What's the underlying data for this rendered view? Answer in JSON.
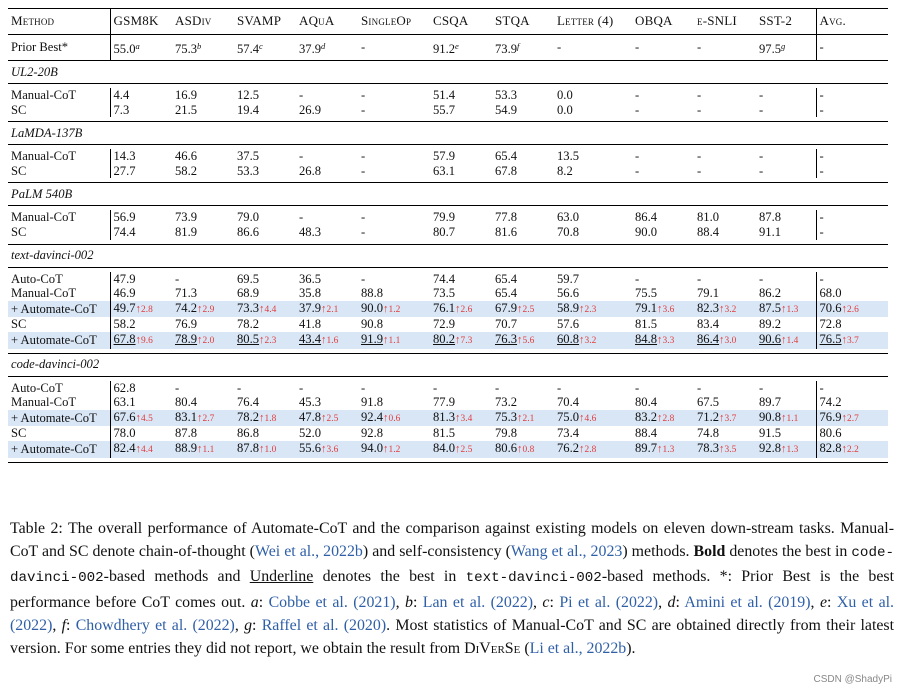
{
  "table": {
    "columns": [
      "Method",
      "GSM8K",
      "ASDiv",
      "SVAMP",
      "AQuA",
      "SingleOp",
      "CSQA",
      "STQA",
      "Letter (4)",
      "OBQA",
      "e-SNLI",
      "SST-2",
      "Avg."
    ],
    "prior_best": {
      "label": "Prior Best*",
      "cells": [
        {
          "v": "55.0",
          "sup": "a"
        },
        {
          "v": "75.3",
          "sup": "b"
        },
        {
          "v": "57.4",
          "sup": "c"
        },
        {
          "v": "37.9",
          "sup": "d"
        },
        {
          "v": "-"
        },
        {
          "v": "91.2",
          "sup": "e"
        },
        {
          "v": "73.9",
          "sup": "f"
        },
        {
          "v": "-"
        },
        {
          "v": "-"
        },
        {
          "v": "-"
        },
        {
          "v": "97.5",
          "sup": "g"
        },
        {
          "v": "-"
        }
      ]
    },
    "sections": [
      {
        "title": "UL2-20B",
        "rows": [
          {
            "label": "Manual-CoT",
            "cells": [
              {
                "v": "4.4"
              },
              {
                "v": "16.9"
              },
              {
                "v": "12.5"
              },
              {
                "v": "-"
              },
              {
                "v": "-"
              },
              {
                "v": "51.4"
              },
              {
                "v": "53.3"
              },
              {
                "v": "0.0"
              },
              {
                "v": "-"
              },
              {
                "v": "-"
              },
              {
                "v": "-"
              },
              {
                "v": "-"
              }
            ]
          },
          {
            "label": "SC",
            "cells": [
              {
                "v": "7.3"
              },
              {
                "v": "21.5"
              },
              {
                "v": "19.4"
              },
              {
                "v": "26.9"
              },
              {
                "v": "-"
              },
              {
                "v": "55.7"
              },
              {
                "v": "54.9"
              },
              {
                "v": "0.0"
              },
              {
                "v": "-"
              },
              {
                "v": "-"
              },
              {
                "v": "-"
              },
              {
                "v": "-"
              }
            ]
          }
        ]
      },
      {
        "title": "LaMDA-137B",
        "rows": [
          {
            "label": "Manual-CoT",
            "cells": [
              {
                "v": "14.3"
              },
              {
                "v": "46.6"
              },
              {
                "v": "37.5"
              },
              {
                "v": "-"
              },
              {
                "v": "-"
              },
              {
                "v": "57.9"
              },
              {
                "v": "65.4"
              },
              {
                "v": "13.5"
              },
              {
                "v": "-"
              },
              {
                "v": "-"
              },
              {
                "v": "-"
              },
              {
                "v": "-"
              }
            ]
          },
          {
            "label": "SC",
            "cells": [
              {
                "v": "27.7"
              },
              {
                "v": "58.2"
              },
              {
                "v": "53.3"
              },
              {
                "v": "26.8"
              },
              {
                "v": "-"
              },
              {
                "v": "63.1"
              },
              {
                "v": "67.8"
              },
              {
                "v": "8.2"
              },
              {
                "v": "-"
              },
              {
                "v": "-"
              },
              {
                "v": "-"
              },
              {
                "v": "-"
              }
            ]
          }
        ]
      },
      {
        "title": "PaLM 540B",
        "rows": [
          {
            "label": "Manual-CoT",
            "cells": [
              {
                "v": "56.9"
              },
              {
                "v": "73.9"
              },
              {
                "v": "79.0"
              },
              {
                "v": "-"
              },
              {
                "v": "-"
              },
              {
                "v": "79.9"
              },
              {
                "v": "77.8"
              },
              {
                "v": "63.0"
              },
              {
                "v": "86.4"
              },
              {
                "v": "81.0"
              },
              {
                "v": "87.8"
              },
              {
                "v": "-"
              }
            ]
          },
          {
            "label": "SC",
            "cells": [
              {
                "v": "74.4"
              },
              {
                "v": "81.9"
              },
              {
                "v": "86.6"
              },
              {
                "v": "48.3"
              },
              {
                "v": "-"
              },
              {
                "v": "80.7"
              },
              {
                "v": "81.6"
              },
              {
                "v": "70.8"
              },
              {
                "v": "90.0"
              },
              {
                "v": "88.4"
              },
              {
                "v": "91.1"
              },
              {
                "v": "-"
              }
            ]
          }
        ]
      },
      {
        "title": "text-davinci-002",
        "rows": [
          {
            "label": "Auto-CoT",
            "cells": [
              {
                "v": "47.9"
              },
              {
                "v": "-"
              },
              {
                "v": "69.5"
              },
              {
                "v": "36.5"
              },
              {
                "v": "-"
              },
              {
                "v": "74.4"
              },
              {
                "v": "65.4"
              },
              {
                "v": "59.7"
              },
              {
                "v": "-"
              },
              {
                "v": "-"
              },
              {
                "v": "-"
              },
              {
                "v": "-"
              }
            ]
          },
          {
            "label": "Manual-CoT",
            "cells": [
              {
                "v": "46.9"
              },
              {
                "v": "71.3"
              },
              {
                "v": "68.9"
              },
              {
                "v": "35.8"
              },
              {
                "v": "88.8"
              },
              {
                "v": "73.5"
              },
              {
                "v": "65.4"
              },
              {
                "v": "56.6"
              },
              {
                "v": "75.5"
              },
              {
                "v": "79.1"
              },
              {
                "v": "86.2"
              },
              {
                "v": "68.0"
              }
            ]
          },
          {
            "label": "+ Automate-CoT",
            "highlight": true,
            "cells": [
              {
                "v": "49.7",
                "d": "2.8"
              },
              {
                "v": "74.2",
                "d": "2.9"
              },
              {
                "v": "73.3",
                "d": "4.4"
              },
              {
                "v": "37.9",
                "d": "2.1"
              },
              {
                "v": "90.0",
                "d": "1.2"
              },
              {
                "v": "76.1",
                "d": "2.6"
              },
              {
                "v": "67.9",
                "d": "2.5"
              },
              {
                "v": "58.9",
                "d": "2.3"
              },
              {
                "v": "79.1",
                "d": "3.6"
              },
              {
                "v": "82.3",
                "d": "3.2"
              },
              {
                "v": "87.5",
                "d": "1.3"
              },
              {
                "v": "70.6",
                "d": "2.6"
              }
            ]
          },
          {
            "label": "SC",
            "cells": [
              {
                "v": "58.2"
              },
              {
                "v": "76.9"
              },
              {
                "v": "78.2"
              },
              {
                "v": "41.8"
              },
              {
                "v": "90.8"
              },
              {
                "v": "72.9"
              },
              {
                "v": "70.7"
              },
              {
                "v": "57.6"
              },
              {
                "v": "81.5"
              },
              {
                "v": "83.4"
              },
              {
                "v": "89.2"
              },
              {
                "v": "72.8"
              }
            ]
          },
          {
            "label": "+ Automate-CoT",
            "highlight": true,
            "underline": true,
            "cells": [
              {
                "v": "67.8",
                "d": "9.6"
              },
              {
                "v": "78.9",
                "d": "2.0"
              },
              {
                "v": "80.5",
                "d": "2.3"
              },
              {
                "v": "43.4",
                "d": "1.6"
              },
              {
                "v": "91.9",
                "d": "1.1"
              },
              {
                "v": "80.2",
                "d": "7.3"
              },
              {
                "v": "76.3",
                "d": "5.6"
              },
              {
                "v": "60.8",
                "d": "3.2"
              },
              {
                "v": "84.8",
                "d": "3.3"
              },
              {
                "v": "86.4",
                "d": "3.0"
              },
              {
                "v": "90.6",
                "d": "1.4"
              },
              {
                "v": "76.5",
                "d": "3.7"
              }
            ]
          }
        ]
      },
      {
        "title": "code-davinci-002",
        "rows": [
          {
            "label": "Auto-CoT",
            "cells": [
              {
                "v": "62.8"
              },
              {
                "v": "-"
              },
              {
                "v": "-"
              },
              {
                "v": "-"
              },
              {
                "v": "-"
              },
              {
                "v": "-"
              },
              {
                "v": "-"
              },
              {
                "v": "-"
              },
              {
                "v": "-"
              },
              {
                "v": "-"
              },
              {
                "v": "-"
              },
              {
                "v": "-"
              }
            ]
          },
          {
            "label": "Manual-CoT",
            "cells": [
              {
                "v": "63.1"
              },
              {
                "v": "80.4"
              },
              {
                "v": "76.4"
              },
              {
                "v": "45.3"
              },
              {
                "v": "91.8"
              },
              {
                "v": "77.9"
              },
              {
                "v": "73.2"
              },
              {
                "v": "70.4"
              },
              {
                "v": "80.4"
              },
              {
                "v": "67.5"
              },
              {
                "v": "89.7"
              },
              {
                "v": "74.2"
              }
            ]
          },
          {
            "label": "+ Automate-CoT",
            "highlight": true,
            "cells": [
              {
                "v": "67.6",
                "d": "4.5"
              },
              {
                "v": "83.1",
                "d": "2.7"
              },
              {
                "v": "78.2",
                "d": "1.8"
              },
              {
                "v": "47.8",
                "d": "2.5"
              },
              {
                "v": "92.4",
                "d": "0.6"
              },
              {
                "v": "81.3",
                "d": "3.4"
              },
              {
                "v": "75.3",
                "d": "2.1"
              },
              {
                "v": "75.0",
                "d": "4.6"
              },
              {
                "v": "83.2",
                "d": "2.8"
              },
              {
                "v": "71.2",
                "d": "3.7"
              },
              {
                "v": "90.8",
                "d": "1.1"
              },
              {
                "v": "76.9",
                "d": "2.7"
              }
            ]
          },
          {
            "label": "SC",
            "cells": [
              {
                "v": "78.0"
              },
              {
                "v": "87.8"
              },
              {
                "v": "86.8"
              },
              {
                "v": "52.0"
              },
              {
                "v": "92.8"
              },
              {
                "v": "81.5"
              },
              {
                "v": "79.8"
              },
              {
                "v": "73.4"
              },
              {
                "v": "88.4"
              },
              {
                "v": "74.8"
              },
              {
                "v": "91.5"
              },
              {
                "v": "80.6"
              }
            ]
          },
          {
            "label": "+ Automate-CoT",
            "highlight": true,
            "bold": true,
            "cells": [
              {
                "v": "82.4",
                "d": "4.4"
              },
              {
                "v": "88.9",
                "d": "1.1"
              },
              {
                "v": "87.8",
                "d": "1.0"
              },
              {
                "v": "55.6",
                "d": "3.6"
              },
              {
                "v": "94.0",
                "d": "1.2"
              },
              {
                "v": "84.0",
                "d": "2.5"
              },
              {
                "v": "80.6",
                "d": "0.8"
              },
              {
                "v": "76.2",
                "d": "2.8"
              },
              {
                "v": "89.7",
                "d": "1.3"
              },
              {
                "v": "78.3",
                "d": "3.5"
              },
              {
                "v": "92.8",
                "d": "1.3"
              },
              {
                "v": "82.8",
                "d": "2.2"
              }
            ]
          }
        ]
      }
    ]
  },
  "caption": {
    "p1": "Table 2: The overall performance of Automate-CoT and the comparison against existing models on eleven down-stream tasks. Manual-CoT and SC denote chain-of-thought (",
    "ref_wei": "Wei et al., 2022b",
    "p2": ") and self-consistency (",
    "ref_wang": "Wang et al., 2023",
    "p3": ") methods. ",
    "bold_word": "Bold",
    "p4": " denotes the best in ",
    "code1": "code-davinci-002",
    "p5": "-based methods and ",
    "underline_word": "Underline",
    "p6": " denotes the best in ",
    "code2": "text-davinci-002",
    "p7": "-based methods. *: Prior Best is the best performance before CoT comes out. ",
    "la": "a",
    "ref_a": "Cobbe et al. (2021)",
    "lb": "b",
    "ref_b": "Lan et al. (2022)",
    "lc": "c",
    "ref_c": "Pi et al. (2022)",
    "ld": "d",
    "ref_d": "Amini et al. (2019)",
    "le": "e",
    "ref_e": "Xu et al. (2022)",
    "lf": "f",
    "ref_f": "Chowdhery et al. (2022)",
    "lg": "g",
    "ref_g": "Raffel et al. (2020)",
    "p8": ". Most statistics of Manual-CoT and SC are obtained directly from their latest version. For some entries they did not report, we obtain the result from ",
    "diverse": "DiVerSe",
    "p9": " (",
    "ref_li": "Li et al., 2022b",
    "p10": ")."
  },
  "watermark": "CSDN @ShadyPi"
}
